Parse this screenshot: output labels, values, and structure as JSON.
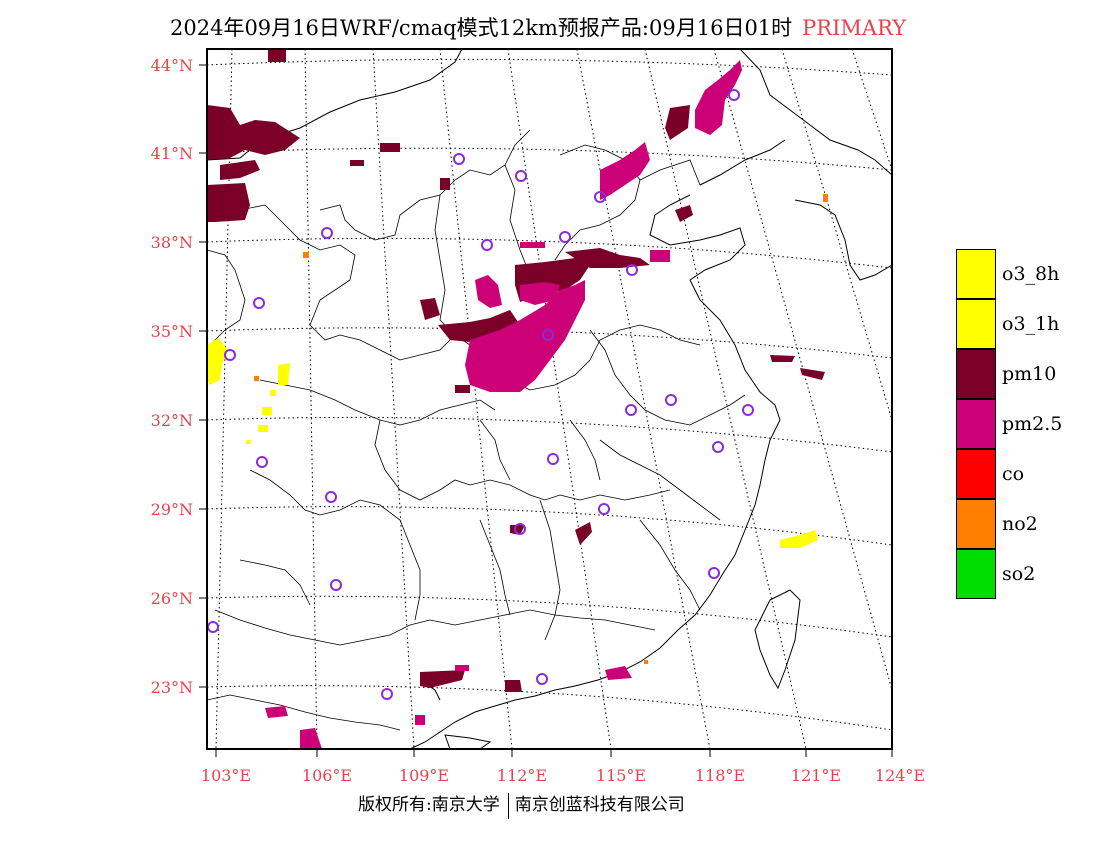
{
  "title": {
    "main": "2024年09月16日WRF/cmaq模式12km预报产品:09月16日01时",
    "tag": "PRIMARY"
  },
  "lat_labels": [
    "44°N",
    "41°N",
    "38°N",
    "35°N",
    "32°N",
    "29°N",
    "26°N",
    "23°N"
  ],
  "lon_labels": [
    "103°E",
    "106°E",
    "109°E",
    "112°E",
    "115°E",
    "118°E",
    "121°E",
    "124°E"
  ],
  "legend": [
    {
      "label": "o3_8h",
      "color": "#ffff00"
    },
    {
      "label": "o3_1h",
      "color": "#ffff00"
    },
    {
      "label": "pm10",
      "color": "#7a0028"
    },
    {
      "label": "pm2.5",
      "color": "#cc0077"
    },
    {
      "label": "co",
      "color": "#ff0000"
    },
    {
      "label": "no2",
      "color": "#ff7f00"
    },
    {
      "label": "so2",
      "color": "#00dd00"
    }
  ],
  "footer": {
    "left": "版权所有:南京大学",
    "right": "南京创蓝科技有限公司"
  },
  "colors": {
    "accent_red": "#e8434b",
    "pm10": "#7a0028",
    "pm25": "#cc0077",
    "o3": "#ffff00",
    "no2": "#ff7f00",
    "station_ring": "#8a2be2"
  }
}
